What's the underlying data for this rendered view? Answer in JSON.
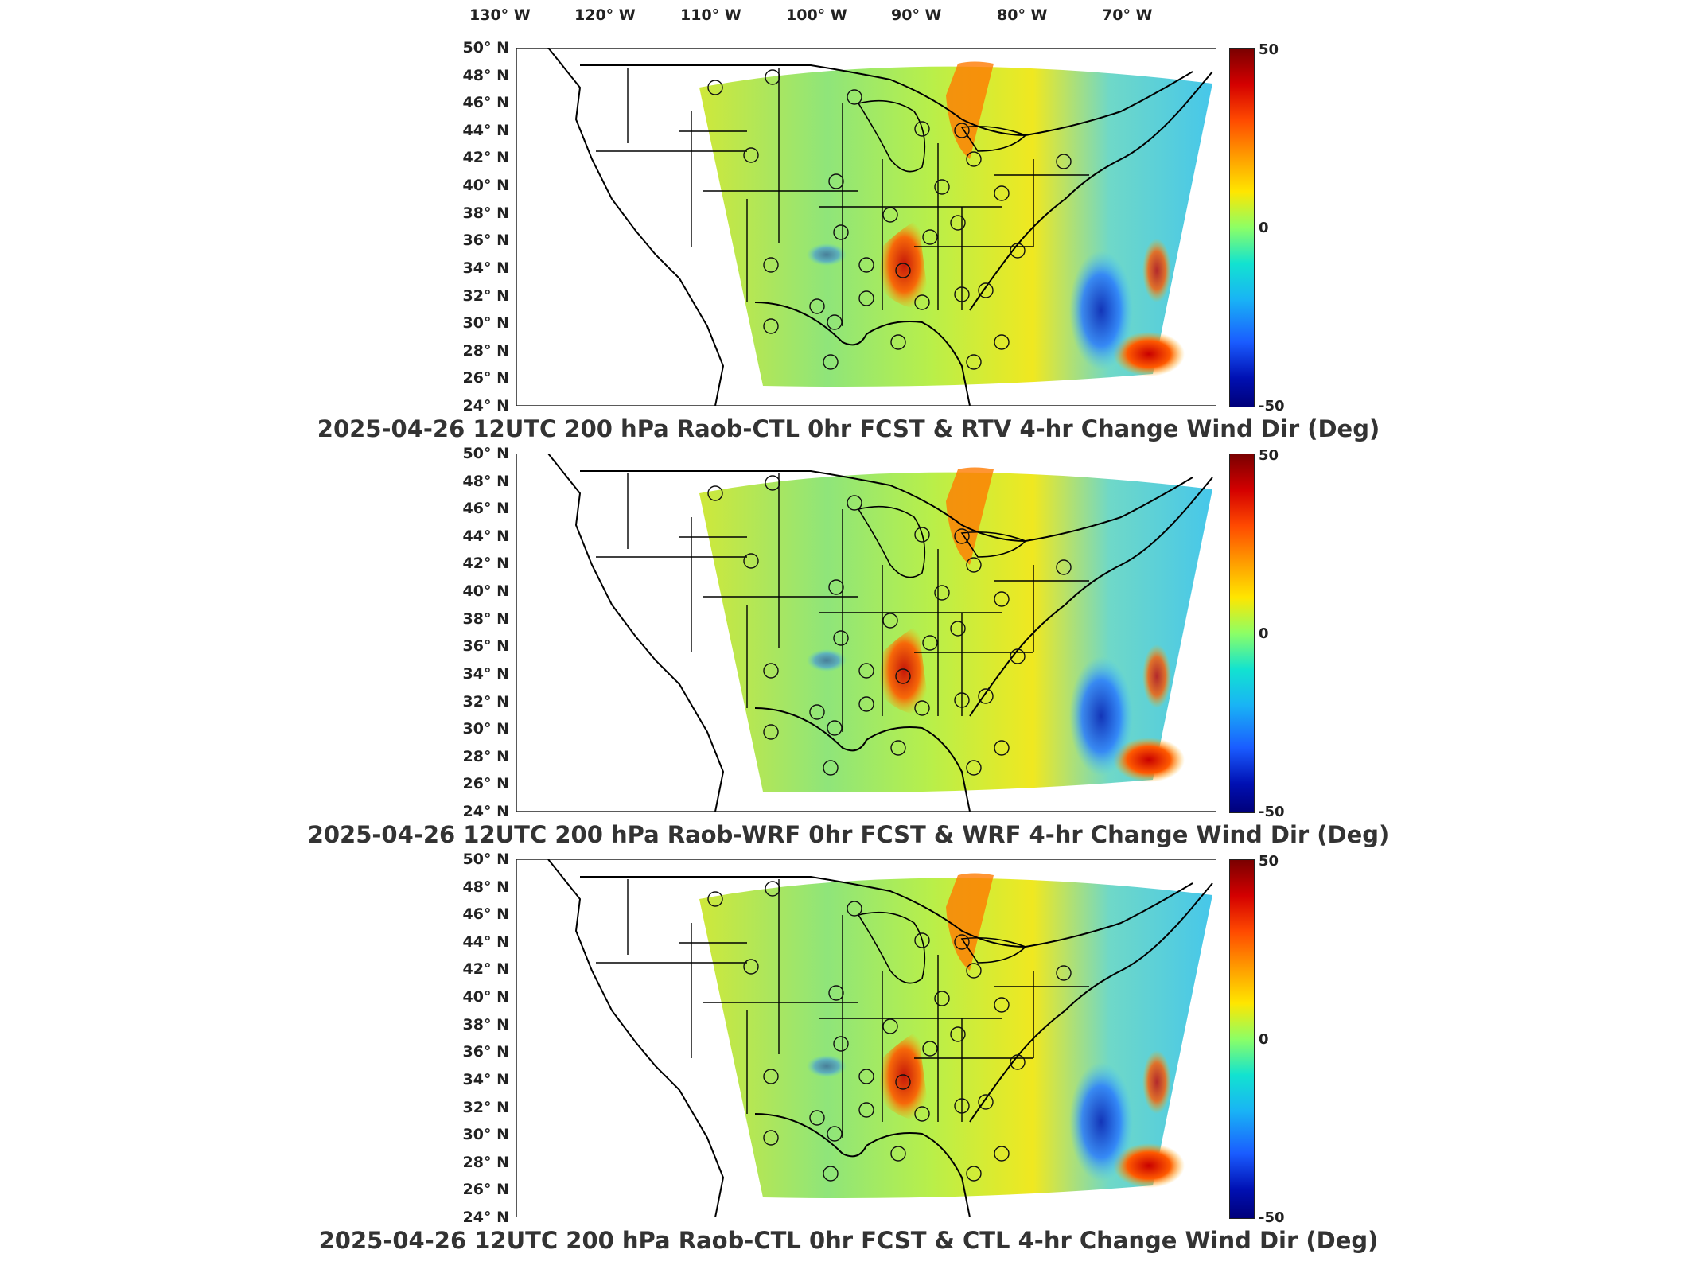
{
  "longitude_labels": [
    "130° W",
    "120° W",
    "110° W",
    "100° W",
    "90° W",
    "80° W",
    "70° W"
  ],
  "latitude_labels": [
    "50° N",
    "48° N",
    "46° N",
    "44° N",
    "42° N",
    "40° N",
    "38° N",
    "36° N",
    "34° N",
    "32° N",
    "30° N",
    "28° N",
    "26° N",
    "24° N"
  ],
  "colorbar": {
    "max_label": "50",
    "mid_label": "0",
    "min_label": "-50"
  },
  "panels": [
    {
      "title": "2025-04-26 12UTC 200 hPa Raob-CTL 0hr FCST & RTV 4-hr Change Wind Dir (Deg)"
    },
    {
      "title": "2025-04-26 12UTC 200 hPa Raob-WRF 0hr FCST & WRF 4-hr Change Wind Dir (Deg)"
    },
    {
      "title": "2025-04-26 12UTC 200 hPa Raob-CTL 0hr FCST & CTL 4-hr Change Wind Dir (Deg)"
    }
  ],
  "colors": {
    "domain_fill": "#9be86e",
    "land_outline": "#000000",
    "band_warm": "#ff7a00",
    "band_hot": "#d61a00",
    "band_cool": "#2a7bff",
    "band_deep": "#0018b8"
  }
}
